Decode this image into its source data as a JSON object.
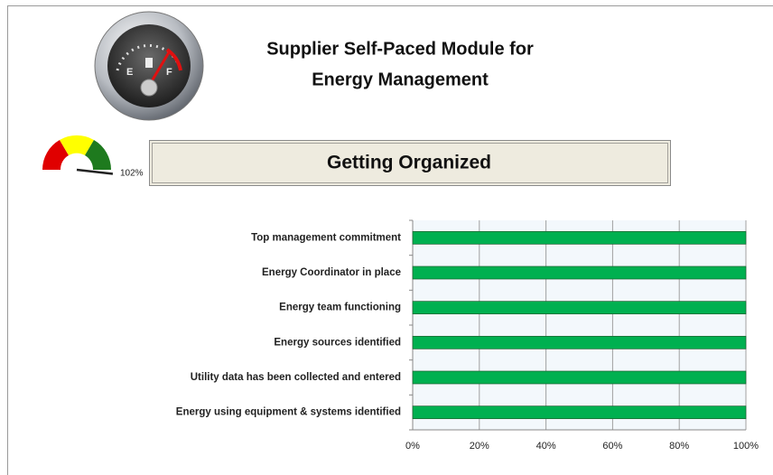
{
  "header": {
    "title_lines": [
      "Supplier Self-Paced Module for",
      "Energy Management"
    ]
  },
  "gauge": {
    "value": 102,
    "label": "102%"
  },
  "section_button": {
    "label": "Getting Organized"
  },
  "chart_data": {
    "type": "bar",
    "orientation": "horizontal",
    "categories": [
      "Top management commitment",
      "Energy Coordinator in place",
      "Energy team functioning",
      "Energy sources identified",
      "Utility data has been collected and entered",
      "Energy using equipment & systems identified"
    ],
    "values": [
      100,
      100,
      100,
      100,
      100,
      100
    ],
    "color": "#00b050",
    "xlim": [
      0,
      100
    ],
    "xticks": [
      {
        "value": 0,
        "label": "0%"
      },
      {
        "value": 20,
        "label": "20%"
      },
      {
        "value": 40,
        "label": "40%"
      },
      {
        "value": 60,
        "label": "60%"
      },
      {
        "value": 80,
        "label": "80%"
      },
      {
        "value": 100,
        "label": "100%"
      }
    ],
    "grid": true
  }
}
